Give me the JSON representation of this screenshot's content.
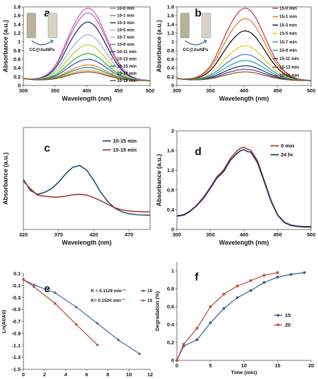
{
  "chart_data": [
    {
      "panel_label": "a",
      "type": "line",
      "xlabel": "Wavelength (nm)",
      "ylabel": "Absorbance (a.u.)",
      "xticks": [
        300,
        350,
        400,
        450,
        500
      ],
      "yticks": [
        0,
        0.2,
        0.4,
        0.6,
        0.8,
        1,
        1.2,
        1.4,
        1.6,
        1.8
      ],
      "xlim": [
        300,
        500
      ],
      "ylim": [
        0,
        1.8
      ],
      "inset_label": "CC@AuNPs",
      "legend_position": "right",
      "series": [
        {
          "name": "10-0 min",
          "peak": 1.66,
          "color": "#e05aa8"
        },
        {
          "name": "10-1 min",
          "peak": 1.55,
          "color": "#b06ab8"
        },
        {
          "name": "10-3 min",
          "peak": 1.34,
          "color": "#1c2f66"
        },
        {
          "name": "10-5 min",
          "peak": 1.05,
          "color": "#9ab8de"
        },
        {
          "name": "10-7 min",
          "peak": 0.82,
          "color": "#c8ce2c"
        },
        {
          "name": "10-9 min",
          "peak": 0.62,
          "color": "#3aa84a"
        },
        {
          "name": "10-11 min",
          "peak": 0.49,
          "color": "#2a5fa8"
        },
        {
          "name": "10-13 min",
          "peak": 0.36,
          "color": "#e88a2c"
        },
        {
          "name": "10-15 min",
          "peak": 0.3,
          "color": "#1a8f8f"
        },
        {
          "name": "10-17 min",
          "peak": 0.24,
          "color": "#d9a24a"
        },
        {
          "name": "10-19 min",
          "peak": 0.2,
          "color": "#7a4a1e"
        }
      ]
    },
    {
      "panel_label": "b",
      "type": "line",
      "xlabel": "Wavelength (nm)",
      "ylabel": "Absorbance (a.u.)",
      "xticks": [
        300,
        350,
        400,
        450,
        500
      ],
      "yticks": [
        0,
        0.2,
        0.4,
        0.6,
        0.8,
        1,
        1.2,
        1.4,
        1.6,
        1.8
      ],
      "xlim": [
        300,
        500
      ],
      "ylim": [
        0,
        1.8
      ],
      "inset_label": "CC@AuNPs",
      "legend_position": "right",
      "series": [
        {
          "name": "15-0 min",
          "peak": 1.66,
          "color": "#c0404a"
        },
        {
          "name": "15-1 min",
          "peak": 1.42,
          "color": "#e07a36"
        },
        {
          "name": "15-3 min",
          "peak": 1.14,
          "color": "#111111"
        },
        {
          "name": "15-5 min",
          "peak": 0.8,
          "color": "#d6d22c"
        },
        {
          "name": "15-7 min",
          "peak": 0.6,
          "color": "#4a7fd0"
        },
        {
          "name": "15-9 min",
          "peak": 0.46,
          "color": "#2aa89a"
        },
        {
          "name": "15-11 min",
          "peak": 0.34,
          "color": "#1a3a7a"
        },
        {
          "name": "15-13 min",
          "peak": 0.26,
          "color": "#6a3a8a"
        },
        {
          "name": "15-15 min",
          "peak": 0.2,
          "color": "#8a5a2a"
        }
      ]
    },
    {
      "panel_label": "c",
      "type": "line",
      "xlabel": "Wavelength (nm)",
      "ylabel": "Absorbance (a.u.)",
      "xticks": [
        320,
        370,
        420,
        470
      ],
      "xlim": [
        320,
        500
      ],
      "ylim": [
        0,
        0.55
      ],
      "legend_position": "top-right",
      "series": [
        {
          "name": "10-15 min",
          "color": "#1f4a6e",
          "x": [
            320,
            330,
            340,
            350,
            360,
            370,
            380,
            390,
            400,
            410,
            420,
            430,
            440,
            450,
            460,
            470,
            480,
            490,
            500
          ],
          "y": [
            0.27,
            0.21,
            0.19,
            0.2,
            0.22,
            0.255,
            0.3,
            0.335,
            0.345,
            0.32,
            0.265,
            0.2,
            0.15,
            0.115,
            0.095,
            0.085,
            0.08,
            0.078,
            0.077
          ]
        },
        {
          "name": "15-15 min",
          "color": "#a0382c",
          "x": [
            320,
            330,
            340,
            350,
            360,
            370,
            380,
            390,
            400,
            410,
            420,
            430,
            440,
            450,
            460,
            470,
            480,
            490,
            500
          ],
          "y": [
            0.26,
            0.22,
            0.185,
            0.18,
            0.175,
            0.175,
            0.18,
            0.187,
            0.19,
            0.185,
            0.172,
            0.155,
            0.135,
            0.117,
            0.106,
            0.1,
            0.097,
            0.095,
            0.095
          ]
        }
      ]
    },
    {
      "panel_label": "d",
      "type": "line",
      "xlabel": "Wavelength (nm)",
      "ylabel": "Absorbance (a.u.)",
      "xticks": [
        300,
        350,
        400,
        450,
        500
      ],
      "yticks": [
        0,
        0.4,
        0.8,
        1.2,
        1.6,
        2
      ],
      "xlim": [
        300,
        500
      ],
      "ylim": [
        0,
        2
      ],
      "legend_position": "top-right",
      "series": [
        {
          "name": "0 min",
          "color": "#a8392c",
          "x": [
            300,
            310,
            320,
            330,
            340,
            350,
            360,
            365,
            370,
            375,
            380,
            390,
            395,
            400,
            405,
            410,
            420,
            430,
            440,
            450,
            460,
            470,
            480,
            490,
            500
          ],
          "y": [
            0.28,
            0.3,
            0.38,
            0.5,
            0.66,
            0.86,
            1.08,
            1.14,
            1.22,
            1.33,
            1.45,
            1.6,
            1.65,
            1.67,
            1.63,
            1.61,
            1.4,
            1.0,
            0.6,
            0.3,
            0.15,
            0.09,
            0.07,
            0.06,
            0.06
          ]
        },
        {
          "name": "24 hr",
          "color": "#1c2f6e",
          "x": [
            300,
            310,
            320,
            330,
            340,
            350,
            360,
            365,
            370,
            375,
            380,
            390,
            395,
            400,
            405,
            410,
            420,
            430,
            440,
            450,
            460,
            470,
            480,
            490,
            500
          ],
          "y": [
            0.27,
            0.29,
            0.37,
            0.49,
            0.64,
            0.84,
            1.05,
            1.11,
            1.18,
            1.3,
            1.41,
            1.55,
            1.6,
            1.62,
            1.58,
            1.57,
            1.36,
            0.97,
            0.58,
            0.29,
            0.14,
            0.08,
            0.06,
            0.05,
            0.05
          ]
        }
      ]
    },
    {
      "panel_label": "e",
      "type": "line",
      "xlabel": "Time (min)",
      "ylabel": "Ln(At/A0)",
      "xticks": [
        0,
        2,
        4,
        6,
        8,
        10,
        12
      ],
      "yticks": [
        0.1,
        -0.1,
        -0.3,
        -0.5,
        -0.7,
        -0.9,
        -1.1,
        -1.3,
        -1.5
      ],
      "xlim": [
        0,
        12
      ],
      "ylim": [
        -1.5,
        0.1
      ],
      "annotations": [
        "K = 0.1129 min⁻¹",
        "K= 0.1524 min⁻¹"
      ],
      "series": [
        {
          "name": "10",
          "color": "#4a6fa8",
          "x": [
            0,
            1,
            3,
            5,
            7,
            9,
            11
          ],
          "y": [
            0,
            -0.09,
            -0.22,
            -0.46,
            -0.73,
            -1.01,
            -1.24
          ]
        },
        {
          "name": "15",
          "color": "#c0503a",
          "x": [
            0,
            1,
            3,
            5,
            7
          ],
          "y": [
            0,
            -0.12,
            -0.4,
            -0.75,
            -1.09
          ]
        }
      ]
    },
    {
      "panel_label": "f",
      "type": "line",
      "xlabel": "Time (min)",
      "ylabel": "Degradation (%)",
      "xticks": [
        0,
        5,
        10,
        15,
        20
      ],
      "yticks": [
        0,
        0.2,
        0.4,
        0.6,
        0.8,
        1
      ],
      "xlim": [
        0,
        20
      ],
      "ylim": [
        0,
        1.1
      ],
      "legend_position": "right",
      "series": [
        {
          "name": "15",
          "color": "#3a5f9a",
          "x": [
            0,
            1,
            3,
            5,
            7,
            9,
            11,
            13,
            15,
            17,
            19
          ],
          "y": [
            0,
            0.16,
            0.23,
            0.42,
            0.58,
            0.7,
            0.78,
            0.87,
            0.93,
            0.96,
            0.98
          ]
        },
        {
          "name": "20",
          "color": "#c0503a",
          "x": [
            0,
            1,
            3,
            5,
            7,
            9,
            11,
            13,
            15
          ],
          "y": [
            0,
            0.18,
            0.36,
            0.6,
            0.74,
            0.83,
            0.89,
            0.95,
            0.98
          ]
        }
      ]
    }
  ]
}
